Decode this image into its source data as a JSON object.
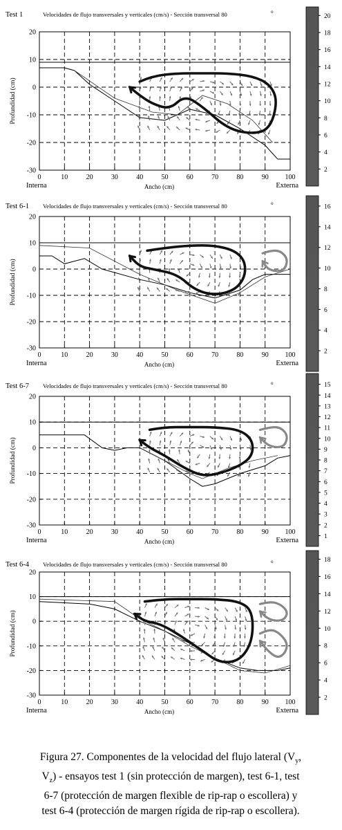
{
  "panels": [
    {
      "test_label": "Test 1",
      "title": "Velocidades de flujo transversales y verticales (cm/s) - Sección transversal 80",
      "title_sup": "o",
      "xlabel": "Ancho (cm)",
      "ylabel": "Profundidad (cm)",
      "left_label": "Interna",
      "right_label": "Externa",
      "x_ticks": [
        "0",
        "10",
        "20",
        "30",
        "40",
        "50",
        "60",
        "70",
        "80",
        "90",
        "100"
      ],
      "y_ticks": [
        "20",
        "10",
        "0",
        "-10",
        "-20",
        "-30"
      ],
      "colorbar_ticks": [
        "20",
        "18",
        "16",
        "14",
        "12",
        "10",
        "8",
        "6",
        "4",
        "2"
      ]
    },
    {
      "test_label": "Test 6-1",
      "title": "Velocidades de flujo transversales y verticales (cm/s) - Sección transversal 80",
      "title_sup": "o",
      "xlabel": "Ancho (cm)",
      "ylabel": "Profundidad (cm)",
      "left_label": "Interna",
      "right_label": "Externa",
      "x_ticks": [
        "0",
        "10",
        "20",
        "30",
        "40",
        "50",
        "60",
        "70",
        "80",
        "90",
        "100"
      ],
      "y_ticks": [
        "20",
        "10",
        "0",
        "-10",
        "-20",
        "-30"
      ],
      "colorbar_ticks": [
        "16",
        "14",
        "12",
        "10",
        "8",
        "6",
        "4",
        "2"
      ]
    },
    {
      "test_label": "Test 6-7",
      "title": "Velocidades de flujo transversales y verticales (cm/s) - Sección transversal 80",
      "title_sup": "o",
      "xlabel": "Ancho (cm)",
      "ylabel": "Profundidad (cm)",
      "left_label": "Interna",
      "right_label": "Externa",
      "x_ticks": [
        "0",
        "10",
        "20",
        "30",
        "40",
        "50",
        "60",
        "70",
        "80",
        "90",
        "100"
      ],
      "y_ticks": [
        "20",
        "10",
        "0",
        "-10",
        "-20",
        "-30"
      ],
      "colorbar_ticks": [
        "15",
        "14",
        "13",
        "12",
        "11",
        "10",
        "9",
        "8",
        "7",
        "6",
        "5",
        "4",
        "3",
        "2",
        "1"
      ]
    },
    {
      "test_label": "Test 6-4",
      "title": "Velocidades de flujo transversales y verticales (cm/s) - Sección transversal 80",
      "title_sup": "o",
      "xlabel": "Ancho (cm)",
      "ylabel": "Profundidad (cm)",
      "left_label": "Interna",
      "right_label": "Externa",
      "x_ticks": [
        "0",
        "10",
        "20",
        "30",
        "40",
        "50",
        "60",
        "70",
        "80",
        "90",
        "100"
      ],
      "y_ticks": [
        "20",
        "10",
        "0",
        "-10",
        "-20",
        "-30"
      ],
      "colorbar_ticks": [
        "18",
        "16",
        "14",
        "12",
        "10",
        "8",
        "6",
        "4",
        "2"
      ]
    }
  ],
  "caption": {
    "line1": "Figura 27. Componentes de la velocidad del flujo lateral (V",
    "line1_sub": "y",
    "line1_end": ",",
    "line2_start": "V",
    "line2_sub": "z",
    "line2": ") - ensayos test 1 (sin protección de margen), test 6-1, test",
    "line3": "6-7 (protección de margen flexible de rip-rap o escollera) y",
    "line4": "test 6-4 (protección de margen rígida de rip-rap o escollera)."
  },
  "chart_data": [
    {
      "type": "scatter",
      "name": "Test 1",
      "xlim": [
        0,
        100
      ],
      "ylim": [
        -30,
        20
      ],
      "xlabel": "Ancho (cm)",
      "ylabel": "Profundidad (cm)",
      "grid": true,
      "water_surface": 9,
      "colorbar_range": [
        0,
        21
      ],
      "bed_profile": {
        "x": [
          0,
          10,
          14,
          20,
          30,
          40,
          50,
          60,
          70,
          80,
          90,
          95,
          100
        ],
        "y": [
          7,
          7,
          6,
          1,
          -5,
          -11,
          -12,
          -8,
          -10,
          -15,
          -21,
          -26,
          -26
        ]
      },
      "secondary_line": {
        "x": [
          14,
          30,
          45,
          55,
          65,
          75,
          85,
          93
        ],
        "y": [
          6,
          -4,
          -9,
          -10,
          -3,
          -6,
          -12,
          -20
        ]
      },
      "circulation_cells": [
        {
          "direction": "counterclockwise",
          "x": [
            40,
            45,
            55,
            65,
            75,
            85,
            92,
            95,
            92,
            85,
            75,
            65,
            58,
            52,
            45,
            40,
            36
          ],
          "y": [
            2,
            4,
            5,
            5,
            5,
            4,
            1,
            -5,
            -15,
            -17,
            -15,
            -7,
            -3,
            -8,
            -6,
            -3,
            0
          ]
        }
      ]
    },
    {
      "type": "scatter",
      "name": "Test 6-1",
      "xlim": [
        0,
        100
      ],
      "ylim": [
        -30,
        20
      ],
      "xlabel": "Ancho (cm)",
      "ylabel": "Profundidad (cm)",
      "grid": true,
      "water_surface": 10,
      "colorbar_range": [
        0,
        17
      ],
      "bed_profile": {
        "x": [
          0,
          5,
          10,
          18,
          25,
          40,
          50,
          60,
          70,
          80,
          85,
          90,
          100
        ],
        "y": [
          5,
          5,
          2,
          4,
          0,
          -4,
          -6,
          -9,
          -11,
          -8,
          -4,
          -2,
          -2
        ]
      },
      "secondary_line": {
        "x": [
          0,
          20,
          40,
          55,
          70,
          80,
          90,
          100
        ],
        "y": [
          9,
          8,
          -2,
          -8,
          -13,
          -9,
          -3,
          0
        ]
      },
      "circulation_cells": [
        {
          "direction": "counterclockwise",
          "x": [
            43,
            50,
            60,
            70,
            78,
            82,
            82,
            78,
            70,
            62,
            55,
            45,
            40,
            36
          ],
          "y": [
            7,
            8,
            9,
            9,
            7,
            3,
            -3,
            -8,
            -10,
            -8,
            -2,
            0,
            1,
            5
          ]
        },
        {
          "direction": "clockwise-small",
          "x": [
            89,
            92,
            96,
            99,
            98,
            95,
            91,
            89
          ],
          "y": [
            6,
            7,
            7,
            4,
            0,
            -1,
            0,
            3
          ]
        }
      ]
    },
    {
      "type": "scatter",
      "name": "Test 6-7",
      "xlim": [
        0,
        100
      ],
      "ylim": [
        -30,
        20
      ],
      "xlabel": "Ancho (cm)",
      "ylabel": "Profundidad (cm)",
      "grid": true,
      "water_surface": 10,
      "colorbar_range": [
        0,
        16
      ],
      "bed_profile": {
        "x": [
          0,
          10,
          18,
          25,
          30,
          35,
          40,
          50,
          60,
          65,
          70,
          80,
          90,
          95,
          100
        ],
        "y": [
          5,
          5,
          5,
          0,
          -1,
          0,
          0,
          -5,
          -12,
          -15,
          -14,
          -10,
          -7,
          -4,
          -3
        ]
      },
      "secondary_line": {
        "x": [
          40,
          50,
          60,
          65,
          75,
          85,
          95
        ],
        "y": [
          0,
          -5,
          -10,
          -12,
          -8,
          -5,
          -3
        ]
      },
      "circulation_cells": [
        {
          "direction": "counterclockwise",
          "x": [
            44,
            50,
            60,
            70,
            80,
            85,
            85,
            80,
            72,
            65,
            58,
            50,
            44,
            40
          ],
          "y": [
            7,
            8,
            8,
            8,
            7,
            3,
            -3,
            -7,
            -10,
            -11,
            -8,
            -3,
            0,
            3
          ]
        },
        {
          "direction": "clockwise-small",
          "x": [
            88,
            92,
            96,
            99,
            98,
            95,
            91,
            88
          ],
          "y": [
            7,
            8,
            8,
            5,
            1,
            0,
            1,
            4
          ]
        }
      ]
    },
    {
      "type": "scatter",
      "name": "Test 6-4",
      "xlim": [
        0,
        100
      ],
      "ylim": [
        -30,
        20
      ],
      "xlabel": "Ancho (cm)",
      "ylabel": "Profundidad (cm)",
      "grid": true,
      "water_surface": 10,
      "colorbar_range": [
        0,
        19
      ],
      "bed_profile": {
        "x": [
          0,
          20,
          30,
          40,
          50,
          60,
          70,
          80,
          87,
          90,
          95,
          100
        ],
        "y": [
          8,
          7,
          5,
          0,
          -4,
          -9,
          -15,
          -19,
          -20,
          -20,
          -20,
          -19
        ]
      },
      "secondary_line": {
        "x": [
          0,
          30,
          40,
          50,
          60,
          70,
          80,
          90,
          100
        ],
        "y": [
          9,
          8,
          1,
          -4,
          -10,
          -15,
          -20,
          -21,
          -18
        ]
      },
      "circulation_cells": [
        {
          "direction": "counterclockwise",
          "x": [
            42,
            50,
            60,
            70,
            80,
            85,
            85,
            80,
            72,
            65,
            55,
            48,
            42,
            38
          ],
          "y": [
            8,
            9,
            9,
            9,
            8,
            4,
            -8,
            -16,
            -17,
            -12,
            -5,
            -1,
            0,
            3
          ]
        },
        {
          "direction": "clockwise-small",
          "x": [
            88,
            92,
            96,
            99,
            98,
            95,
            91,
            88
          ],
          "y": [
            7,
            8,
            7,
            4,
            1,
            0,
            1,
            4
          ]
        },
        {
          "direction": "clockwise-small",
          "x": [
            88,
            92,
            96,
            99,
            98,
            95,
            91,
            88
          ],
          "y": [
            -5,
            -3,
            -5,
            -9,
            -13,
            -15,
            -12,
            -8
          ]
        }
      ]
    }
  ]
}
